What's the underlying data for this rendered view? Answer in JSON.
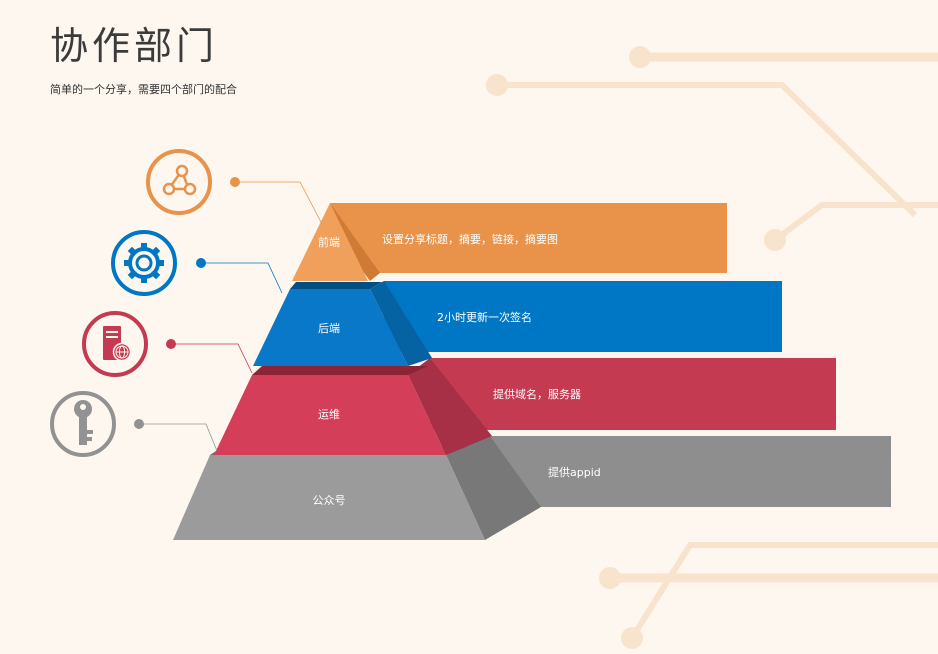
{
  "title": "协作部门",
  "subtitle": "简单的一个分享，需要四个部门的配合",
  "layers": [
    {
      "name": "前端",
      "description": "设置分享标题，摘要，链接，摘要图",
      "color": "#e8924a",
      "icon": "share-icon"
    },
    {
      "name": "后端",
      "description": "2小时更新一次签名",
      "color": "#0077c4",
      "icon": "gear-icon"
    },
    {
      "name": "运维",
      "description": "提供域名，服务器",
      "color": "#cd3e55",
      "icon": "server-icon"
    },
    {
      "name": "公众号",
      "description": "提供appid",
      "color": "#929292",
      "icon": "key-icon"
    }
  ],
  "colors": {
    "background": "#fdf7ef",
    "circuit": "#f8e3cc",
    "front_bar": "#e8924a",
    "front_pyramid": "#f0a05a",
    "back_bar": "#0077c4",
    "back_pyramid": "#0a78c8",
    "ops_bar": "#c43a51",
    "ops_pyramid": "#d43e58",
    "wechat_bar": "#8e8e8e",
    "wechat_pyramid": "#9b9b9b"
  }
}
